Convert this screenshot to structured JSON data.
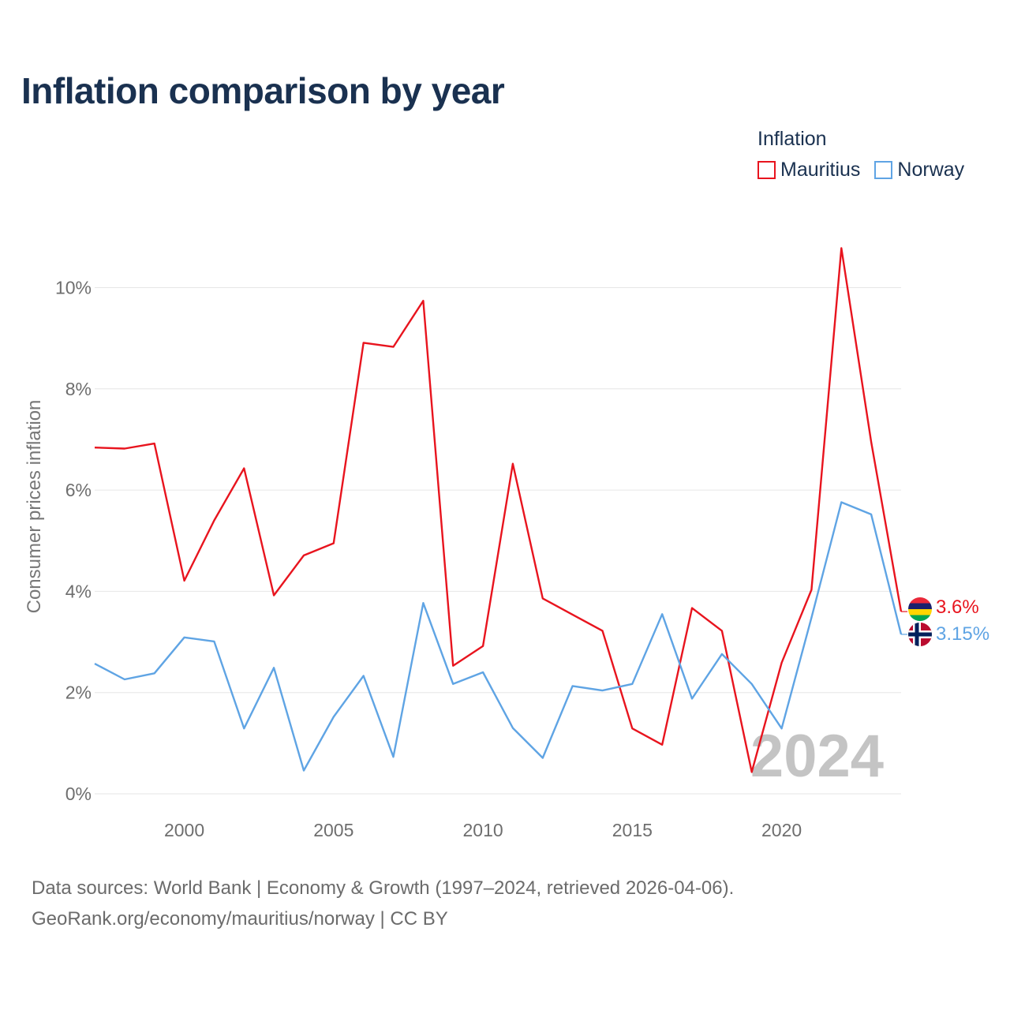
{
  "title": "Inflation comparison by year",
  "legend": {
    "title": "Inflation",
    "items": [
      {
        "name": "Mauritius",
        "color": "#e8141e"
      },
      {
        "name": "Norway",
        "color": "#5fa4e4"
      }
    ]
  },
  "year_label": "2024",
  "source": {
    "line1": "Data sources: World Bank | Economy & Growth (1997–2024, retrieved 2026-04-06).",
    "line2": "GeoRank.org/economy/mauritius/norway | CC BY"
  },
  "chart_data": {
    "type": "line",
    "title": "Inflation comparison by year",
    "xlabel": "",
    "ylabel": "Consumer prices inflation",
    "xlim": [
      1997,
      2024
    ],
    "ylim": [
      0,
      11
    ],
    "x_ticks": [
      2000,
      2005,
      2010,
      2015,
      2020
    ],
    "y_ticks": [
      0,
      2,
      4,
      6,
      8,
      10
    ],
    "y_tick_labels": [
      "0%",
      "2%",
      "4%",
      "6%",
      "8%",
      "10%"
    ],
    "grid": true,
    "legend_position": "top-right",
    "x": [
      1997,
      1998,
      1999,
      2000,
      2001,
      2002,
      2003,
      2004,
      2005,
      2006,
      2007,
      2008,
      2009,
      2010,
      2011,
      2012,
      2013,
      2014,
      2015,
      2016,
      2017,
      2018,
      2019,
      2020,
      2021,
      2022,
      2023,
      2024
    ],
    "series": [
      {
        "name": "Mauritius",
        "color": "#e8141e",
        "end_label": "3.6%",
        "values": [
          6.84,
          6.82,
          6.92,
          4.21,
          5.4,
          6.43,
          3.92,
          4.71,
          4.95,
          8.91,
          8.83,
          9.74,
          2.53,
          2.92,
          6.52,
          3.86,
          3.54,
          3.22,
          1.29,
          0.97,
          3.67,
          3.22,
          0.43,
          2.59,
          4.03,
          10.78,
          6.95,
          3.6
        ]
      },
      {
        "name": "Norway",
        "color": "#5fa4e4",
        "end_label": "3.15%",
        "values": [
          2.57,
          2.26,
          2.38,
          3.09,
          3.01,
          1.29,
          2.49,
          0.46,
          1.52,
          2.33,
          0.73,
          3.77,
          2.17,
          2.4,
          1.3,
          0.71,
          2.13,
          2.04,
          2.17,
          3.55,
          1.88,
          2.76,
          2.17,
          1.29,
          3.48,
          5.76,
          5.52,
          3.15
        ]
      }
    ]
  }
}
